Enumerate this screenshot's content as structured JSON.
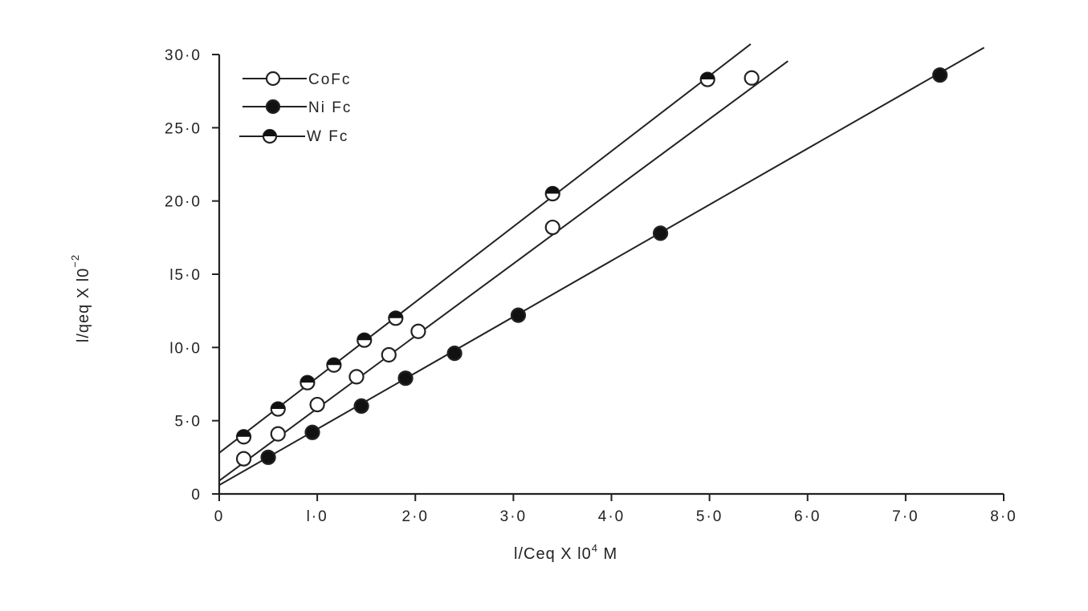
{
  "chart_data": {
    "type": "scatter",
    "xlabel": {
      "main": "l/Ceq X l0",
      "sup": "4",
      "unit": " M"
    },
    "ylabel": {
      "main": "l/qeq X l0",
      "sup": "−2"
    },
    "xlim": [
      0,
      8
    ],
    "ylim": [
      0,
      30
    ],
    "x_ticks": [
      {
        "value": 0,
        "label": "0"
      },
      {
        "value": 1,
        "label": "l·0"
      },
      {
        "value": 2,
        "label": "2·0"
      },
      {
        "value": 3,
        "label": "3·0"
      },
      {
        "value": 4,
        "label": "4·0"
      },
      {
        "value": 5,
        "label": "5·0"
      },
      {
        "value": 6,
        "label": "6·0"
      },
      {
        "value": 7,
        "label": "7·0"
      },
      {
        "value": 8,
        "label": "8·0"
      }
    ],
    "y_ticks": [
      {
        "value": 0,
        "label": "0"
      },
      {
        "value": 5,
        "label": "5·0"
      },
      {
        "value": 10,
        "label": "l0·0"
      },
      {
        "value": 15,
        "label": "l5·0"
      },
      {
        "value": 20,
        "label": "20·0"
      },
      {
        "value": 25,
        "label": "25·0"
      },
      {
        "value": 30,
        "label": "30·0"
      }
    ],
    "grid": false,
    "legend_position": "top-left",
    "series": [
      {
        "name": "CoFc",
        "marker": "open",
        "points": [
          [
            0.25,
            2.4
          ],
          [
            0.6,
            4.1
          ],
          [
            1.0,
            6.1
          ],
          [
            1.4,
            8.0
          ],
          [
            1.73,
            9.5
          ],
          [
            2.03,
            11.1
          ],
          [
            3.4,
            18.2
          ],
          [
            5.43,
            28.4
          ]
        ],
        "fit": {
          "intercept": 0.9,
          "slope": 4.94,
          "x_end": 5.8
        }
      },
      {
        "name": "NiFc",
        "marker": "filled",
        "points": [
          [
            0.5,
            2.5
          ],
          [
            0.95,
            4.2
          ],
          [
            1.45,
            6.0
          ],
          [
            1.9,
            7.9
          ],
          [
            2.4,
            9.6
          ],
          [
            3.05,
            12.2
          ],
          [
            4.5,
            17.8
          ],
          [
            7.35,
            28.6
          ]
        ],
        "fit": {
          "intercept": 0.6,
          "slope": 3.83,
          "x_end": 7.8
        }
      },
      {
        "name": "WFc",
        "marker": "half",
        "points": [
          [
            0.25,
            3.9
          ],
          [
            0.6,
            5.8
          ],
          [
            0.9,
            7.6
          ],
          [
            1.17,
            8.8
          ],
          [
            1.48,
            10.5
          ],
          [
            1.8,
            12.0
          ],
          [
            3.4,
            20.5
          ],
          [
            4.98,
            28.3
          ]
        ],
        "fit": {
          "intercept": 2.8,
          "slope": 5.15,
          "x_end": 5.42
        }
      }
    ]
  },
  "legend": [
    {
      "label": "CoFc"
    },
    {
      "label": "Ni Fc"
    },
    {
      "label": "W Fc"
    }
  ]
}
